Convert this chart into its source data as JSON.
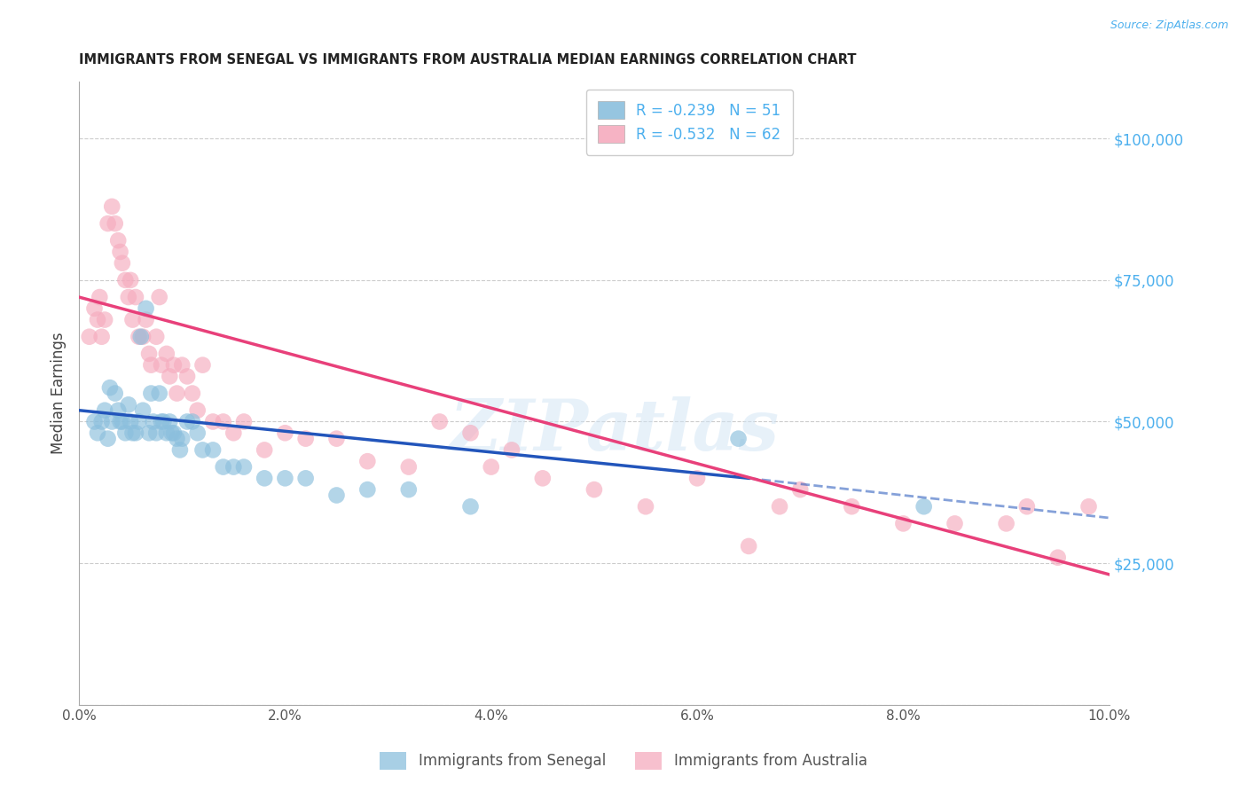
{
  "title": "IMMIGRANTS FROM SENEGAL VS IMMIGRANTS FROM AUSTRALIA MEDIAN EARNINGS CORRELATION CHART",
  "source": "Source: ZipAtlas.com",
  "ylabel": "Median Earnings",
  "yticks": [
    0,
    25000,
    50000,
    75000,
    100000
  ],
  "ytick_labels": [
    "",
    "$25,000",
    "$50,000",
    "$75,000",
    "$100,000"
  ],
  "xmin": 0.0,
  "xmax": 10.0,
  "ymin": 0,
  "ymax": 110000,
  "blue_R": -0.239,
  "blue_N": 51,
  "pink_R": -0.532,
  "pink_N": 62,
  "blue_color": "#8bbfdd",
  "pink_color": "#f5abbe",
  "blue_line_color": "#2255bb",
  "pink_line_color": "#e8407a",
  "legend_label_blue": "Immigrants from Senegal",
  "legend_label_pink": "Immigrants from Australia",
  "watermark": "ZIPatlas",
  "blue_scatter_x": [
    0.15,
    0.18,
    0.22,
    0.25,
    0.28,
    0.3,
    0.32,
    0.35,
    0.38,
    0.4,
    0.42,
    0.45,
    0.48,
    0.5,
    0.52,
    0.55,
    0.58,
    0.6,
    0.62,
    0.65,
    0.68,
    0.7,
    0.72,
    0.75,
    0.78,
    0.8,
    0.82,
    0.85,
    0.88,
    0.9,
    0.92,
    0.95,
    0.98,
    1.0,
    1.05,
    1.1,
    1.15,
    1.2,
    1.3,
    1.4,
    1.5,
    1.6,
    1.8,
    2.0,
    2.2,
    2.5,
    2.8,
    3.2,
    3.8,
    6.4,
    8.2
  ],
  "blue_scatter_y": [
    50000,
    48000,
    50000,
    52000,
    47000,
    56000,
    50000,
    55000,
    52000,
    50000,
    50000,
    48000,
    53000,
    50000,
    48000,
    48000,
    50000,
    65000,
    52000,
    70000,
    48000,
    55000,
    50000,
    48000,
    55000,
    50000,
    50000,
    48000,
    50000,
    48000,
    48000,
    47000,
    45000,
    47000,
    50000,
    50000,
    48000,
    45000,
    45000,
    42000,
    42000,
    42000,
    40000,
    40000,
    40000,
    37000,
    38000,
    38000,
    35000,
    47000,
    35000
  ],
  "pink_scatter_x": [
    0.1,
    0.15,
    0.18,
    0.2,
    0.22,
    0.25,
    0.28,
    0.32,
    0.35,
    0.38,
    0.4,
    0.42,
    0.45,
    0.48,
    0.5,
    0.52,
    0.55,
    0.58,
    0.62,
    0.65,
    0.68,
    0.7,
    0.75,
    0.78,
    0.8,
    0.85,
    0.88,
    0.92,
    0.95,
    1.0,
    1.05,
    1.1,
    1.15,
    1.2,
    1.3,
    1.4,
    1.5,
    1.6,
    1.8,
    2.0,
    2.2,
    2.5,
    2.8,
    3.2,
    3.5,
    4.0,
    4.5,
    5.0,
    5.5,
    6.0,
    6.5,
    6.8,
    7.0,
    7.5,
    8.0,
    8.5,
    9.0,
    9.2,
    9.5,
    9.8,
    3.8,
    4.2
  ],
  "pink_scatter_y": [
    65000,
    70000,
    68000,
    72000,
    65000,
    68000,
    85000,
    88000,
    85000,
    82000,
    80000,
    78000,
    75000,
    72000,
    75000,
    68000,
    72000,
    65000,
    65000,
    68000,
    62000,
    60000,
    65000,
    72000,
    60000,
    62000,
    58000,
    60000,
    55000,
    60000,
    58000,
    55000,
    52000,
    60000,
    50000,
    50000,
    48000,
    50000,
    45000,
    48000,
    47000,
    47000,
    43000,
    42000,
    50000,
    42000,
    40000,
    38000,
    35000,
    40000,
    28000,
    35000,
    38000,
    35000,
    32000,
    32000,
    32000,
    35000,
    26000,
    35000,
    48000,
    45000
  ],
  "blue_line_x0": 0.0,
  "blue_line_y0": 52000,
  "blue_line_x1": 6.5,
  "blue_line_y1": 40000,
  "blue_dash_x0": 6.5,
  "blue_dash_y0": 40000,
  "blue_dash_x1": 10.0,
  "blue_dash_y1": 33000,
  "pink_line_x0": 0.0,
  "pink_line_y0": 72000,
  "pink_line_x1": 10.0,
  "pink_line_y1": 23000
}
